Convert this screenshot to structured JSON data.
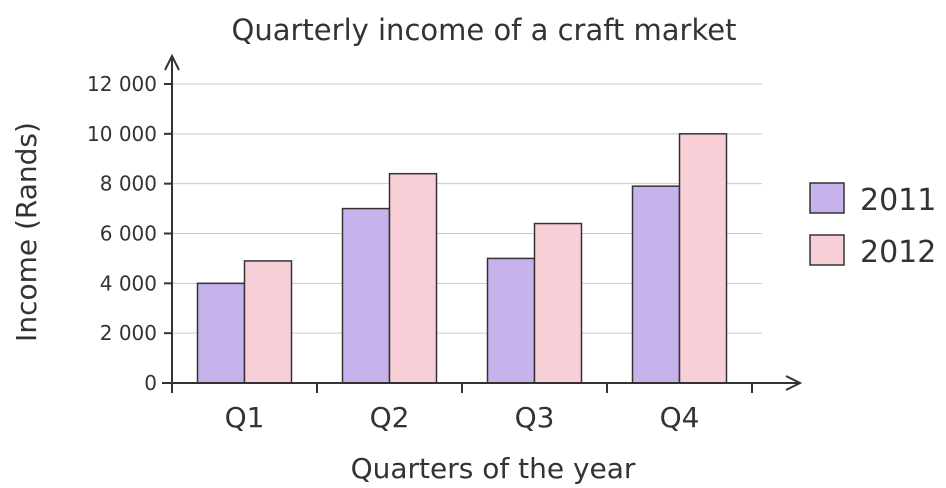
{
  "chart_data": {
    "type": "bar",
    "title": "Quarterly income of a craft market",
    "xlabel": "Quarters of the year",
    "ylabel": "Income (Rands)",
    "categories": [
      "Q1",
      "Q2",
      "Q3",
      "Q4"
    ],
    "series": [
      {
        "name": "2011",
        "values": [
          4000,
          7000,
          5000,
          7900
        ],
        "color": "#c7b3ec"
      },
      {
        "name": "2012",
        "values": [
          4900,
          8400,
          6400,
          10000
        ],
        "color": "#f8cfd6"
      }
    ],
    "ylim": [
      0,
      12000
    ],
    "yticks": [
      0,
      2000,
      4000,
      6000,
      8000,
      10000,
      12000
    ],
    "ytick_labels": [
      "0",
      "2 000",
      "4 000",
      "6 000",
      "8 000",
      "10 000",
      "12 000"
    ],
    "grid": true,
    "legend_position": "right"
  },
  "colors": {
    "axis": "#333333",
    "grid": "#c9c9c9",
    "bar_stroke": "#333333"
  }
}
